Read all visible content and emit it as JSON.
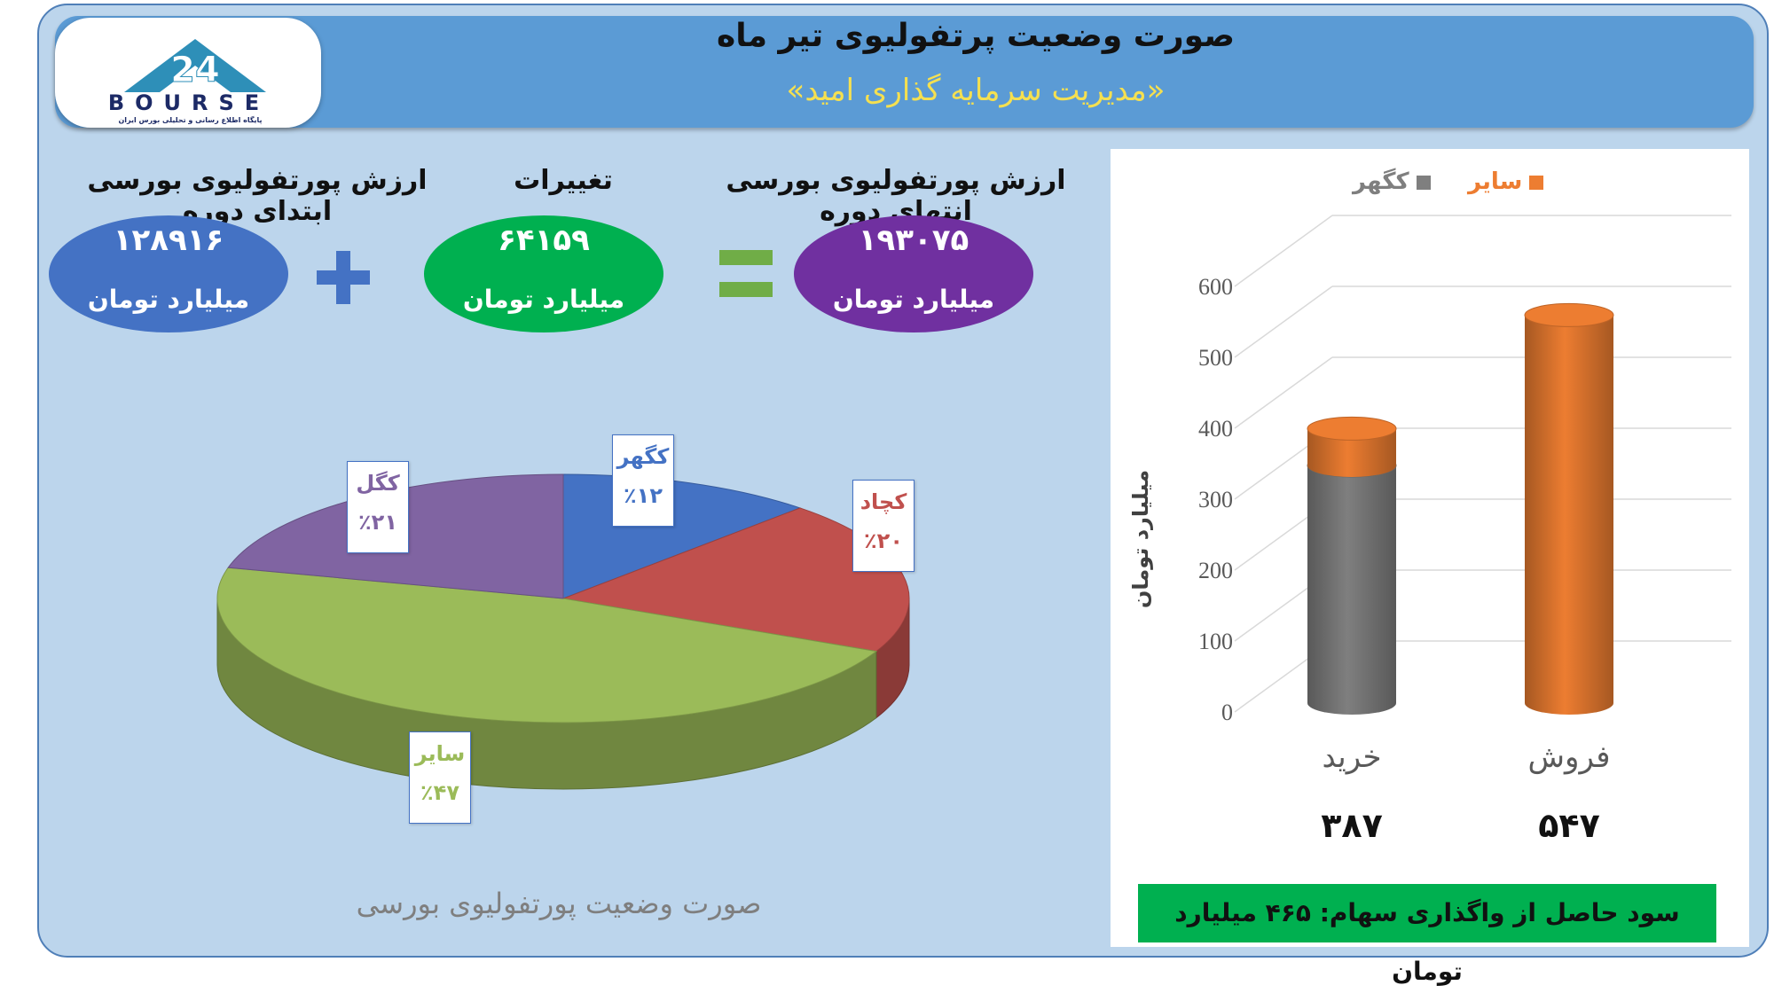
{
  "header": {
    "title": "صورت وضعیت پرتفولیوی تیر ماه",
    "subtitle": "«مدیریت سرمایه گذاری امید»"
  },
  "logo": {
    "text": "BOURSE",
    "subtext": "پایگاه اطلاع رسانی و تحلیلی بورس ایران",
    "mark": "24"
  },
  "summary": {
    "start": {
      "label": "ارزش پورتفولیوی بورسی ابتدای دوره",
      "value": "۱۲۸۹۱۶",
      "unit": "میلیارد تومان",
      "color": "#4472c4"
    },
    "change": {
      "label": "تغییرات",
      "value": "۶۴۱۵۹",
      "unit": "میلیارد تومان",
      "color": "#00b050"
    },
    "end": {
      "label": "ارزش پورتفولیوی بورسی انتهای دوره",
      "value": "۱۹۳۰۷۵",
      "unit": "میلیارد تومان",
      "color": "#7030a0"
    }
  },
  "pie": {
    "caption": "صورت وضعیت پورتفولیوی بورسی"
  },
  "bar": {
    "legend": [
      {
        "name": "سایر",
        "color": "#ed7d31"
      },
      {
        "name": "کگهر",
        "color": "#7f7f7f"
      }
    ],
    "value_labels": [
      "۳۸۷",
      "۵۴۷"
    ],
    "footer": "سود حاصل از واگذاری سهام: ۴۶۵ میلیارد تومان"
  },
  "chart_data": [
    {
      "type": "pie",
      "title": "صورت وضعیت پورتفولیوی بورسی",
      "slices": [
        {
          "name": "کگهر",
          "label": "٪۱۲",
          "value": 12,
          "color": "#4472c4"
        },
        {
          "name": "کچاد",
          "label": "٪۲۰",
          "value": 20,
          "color": "#c0504d"
        },
        {
          "name": "سایر",
          "label": "٪۴۷",
          "value": 47,
          "color": "#9bbb59"
        },
        {
          "name": "کگل",
          "label": "٪۲۱",
          "value": 21,
          "color": "#8064a2"
        }
      ]
    },
    {
      "type": "bar",
      "stacked": true,
      "categories": [
        "خرید",
        "فروش"
      ],
      "series": [
        {
          "name": "کگهر",
          "values": [
            335,
            0
          ],
          "color": "#7f7f7f"
        },
        {
          "name": "سایر",
          "values": [
            52,
            547
          ],
          "color": "#ed7d31"
        }
      ],
      "ylabel": "میلیارد تومان",
      "ylim": [
        0,
        600
      ],
      "yticks": [
        "0",
        "100",
        "200",
        "300",
        "400",
        "500",
        "600"
      ],
      "grid": true,
      "legend": "top"
    }
  ]
}
